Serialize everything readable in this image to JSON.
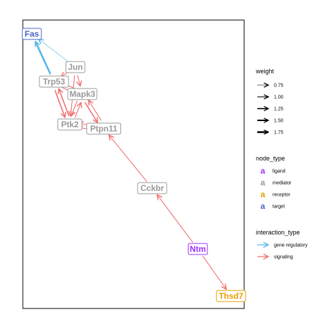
{
  "nodes": [
    {
      "id": "Fas",
      "type": "target"
    },
    {
      "id": "Jun",
      "type": "mediator"
    },
    {
      "id": "Trp53",
      "type": "mediator"
    },
    {
      "id": "Mapk3",
      "type": "mediator"
    },
    {
      "id": "Ptk2",
      "type": "mediator"
    },
    {
      "id": "Ptpn11",
      "type": "mediator"
    },
    {
      "id": "Cckbr",
      "type": "mediator"
    },
    {
      "id": "Ntm",
      "type": "ligand"
    },
    {
      "id": "Thsd7",
      "type": "receptor"
    }
  ],
  "edges": [
    {
      "from": "Trp53",
      "to": "Fas",
      "interaction": "gene regulatory",
      "weight": 1.75
    },
    {
      "from": "Jun",
      "to": "Fas",
      "interaction": "gene regulatory",
      "weight": 0.75
    },
    {
      "from": "Jun",
      "to": "Trp53",
      "interaction": "signaling",
      "weight": 1.0
    },
    {
      "from": "Jun",
      "to": "Mapk3",
      "interaction": "signaling",
      "weight": 1.0
    },
    {
      "from": "Trp53",
      "to": "Mapk3",
      "interaction": "signaling",
      "weight": 1.0
    },
    {
      "from": "Mapk3",
      "to": "Trp53",
      "interaction": "signaling",
      "weight": 1.0
    },
    {
      "from": "Trp53",
      "to": "Ptk2",
      "interaction": "signaling",
      "weight": 1.25
    },
    {
      "from": "Ptk2",
      "to": "Trp53",
      "interaction": "signaling",
      "weight": 1.25
    },
    {
      "from": "Mapk3",
      "to": "Ptk2",
      "interaction": "signaling",
      "weight": 1.0
    },
    {
      "from": "Ptk2",
      "to": "Mapk3",
      "interaction": "signaling",
      "weight": 1.0
    },
    {
      "from": "Mapk3",
      "to": "Ptpn11",
      "interaction": "signaling",
      "weight": 1.25
    },
    {
      "from": "Ptpn11",
      "to": "Mapk3",
      "interaction": "signaling",
      "weight": 1.0
    },
    {
      "from": "Ptk2",
      "to": "Ptpn11",
      "interaction": "signaling",
      "weight": 1.0
    },
    {
      "from": "Ptpn11",
      "to": "Ptk2",
      "interaction": "signaling",
      "weight": 1.0
    },
    {
      "from": "Jun",
      "to": "Ptk2",
      "interaction": "signaling",
      "weight": 1.0
    },
    {
      "from": "Cckbr",
      "to": "Ptpn11",
      "interaction": "signaling",
      "weight": 1.0
    },
    {
      "from": "Ntm",
      "to": "Cckbr",
      "interaction": "signaling",
      "weight": 1.0
    },
    {
      "from": "Ntm",
      "to": "Thsd7",
      "interaction": "signaling",
      "weight": 1.0
    }
  ],
  "legend": {
    "weight": {
      "title": "weight",
      "items": [
        "0.75",
        "1.00",
        "1.25",
        "1.50",
        "1.75"
      ],
      "values": [
        0.75,
        1.0,
        1.25,
        1.5,
        1.75
      ]
    },
    "node_type": {
      "title": "node_type",
      "glyph": "a",
      "items": [
        {
          "label": "ligand",
          "color": "#9b30ff"
        },
        {
          "label": "mediator",
          "color": "#999999"
        },
        {
          "label": "receptor",
          "color": "#e69f00"
        },
        {
          "label": "target",
          "color": "#4a63c5"
        }
      ]
    },
    "interaction_type": {
      "title": "interaction_type",
      "items": [
        {
          "label": "gene regulatory",
          "color": "#56b4e9"
        },
        {
          "label": "signaling",
          "color": "#f07070"
        }
      ]
    }
  }
}
